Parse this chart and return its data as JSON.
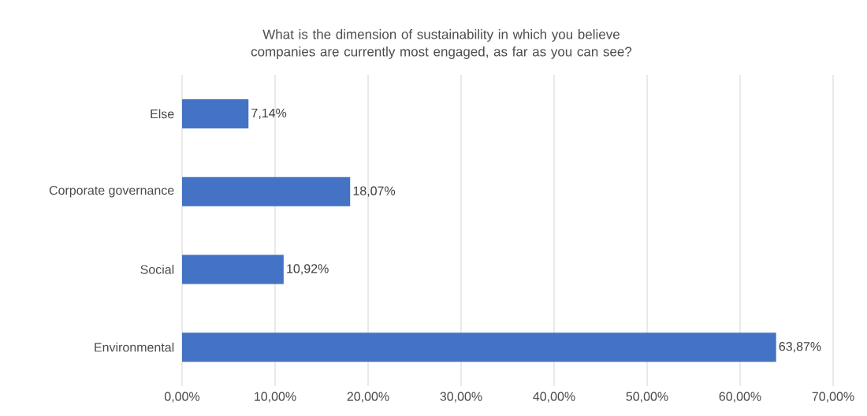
{
  "chart_data": {
    "type": "bar",
    "orientation": "horizontal",
    "title": "What is the dimension of sustainability in which you believe companies are currently most engaged, as far as you can see?",
    "categories": [
      "Else",
      "Corporate governance",
      "Social",
      "Environmental"
    ],
    "values": [
      7.14,
      18.07,
      10.92,
      63.87
    ],
    "value_labels": [
      "7,14%",
      "18,07%",
      "10,92%",
      "63,87%"
    ],
    "color": "#4472c4",
    "xlim": [
      0,
      70
    ],
    "xticks": [
      {
        "value": 0,
        "label": "0,00%"
      },
      {
        "value": 10,
        "label": "10,00%"
      },
      {
        "value": 20,
        "label": "20,00%"
      },
      {
        "value": 30,
        "label": "30,00%"
      },
      {
        "value": 40,
        "label": "40,00%"
      },
      {
        "value": 50,
        "label": "50,00%"
      },
      {
        "value": 60,
        "label": "60,00%"
      },
      {
        "value": 70,
        "label": "70,00%"
      }
    ],
    "grid": "x"
  }
}
